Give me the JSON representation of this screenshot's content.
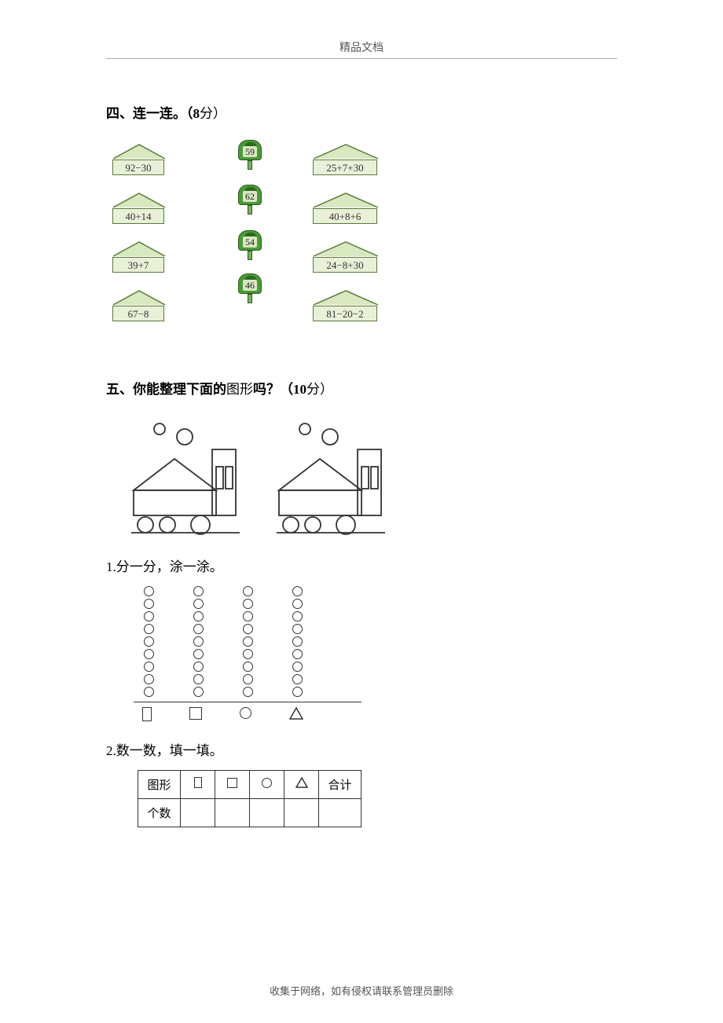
{
  "header": {
    "title": "精品文档"
  },
  "section4": {
    "title_bold": "四、连一连。（8",
    "title_rest": "分）",
    "left_envelopes": [
      "92−30",
      "40+14",
      "39+7",
      "67−8"
    ],
    "right_envelopes": [
      "25+7+30",
      "40+8+6",
      "24−8+30",
      "81−20−2"
    ],
    "mailboxes": [
      "59",
      "62",
      "54",
      "46"
    ],
    "env_bg": "#e8f0d8",
    "env_border": "#5a7a3a",
    "mailbox_color": "#4a9a3a"
  },
  "section5": {
    "title_bold": "五、你能整理下面的",
    "title_mid": "图形",
    "title_rest": "吗？（10",
    "title_end": "分）",
    "train_svg": {
      "smoke_circle_stroke": "#333333",
      "body_stroke": "#333333"
    },
    "sub1": "1.分一分，涂一涂。",
    "circle_columns": [
      9,
      9,
      9,
      9
    ],
    "label_shapes": [
      "thin-rect",
      "square",
      "circle",
      "triangle"
    ],
    "sub2": "2.数一数，填一填。",
    "table": {
      "row1_label": "图形",
      "row2_label": "个数",
      "header_shapes": [
        "thin-rect",
        "square",
        "circle",
        "triangle"
      ],
      "total_label": "合计"
    }
  },
  "footer": {
    "text": "收集于网络，如有侵权请联系管理员删除"
  }
}
